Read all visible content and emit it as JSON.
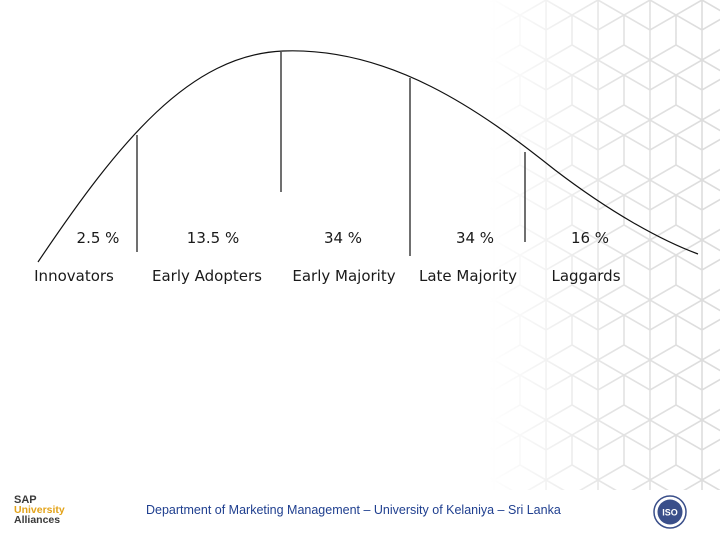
{
  "segments": [
    {
      "percent": "2.5 %",
      "label": "Innovators"
    },
    {
      "percent": "13.5 %",
      "label": "Early Adopters"
    },
    {
      "percent": "34 %",
      "label": "Early  Majority"
    },
    {
      "percent": "34 %",
      "label": "Late Majority"
    },
    {
      "percent": "16 %",
      "label": "Laggards"
    }
  ],
  "footer": {
    "department": "Department of Marketing Management – University of Kelaniya – Sri Lanka"
  },
  "logos": {
    "sap_line1": "SAP",
    "sap_line2": "University",
    "sap_line3": "Alliances",
    "iso_text": "ISO"
  },
  "colors": {
    "curve": "#111111",
    "footer_text": "#1f3f8f",
    "sap_accent": "#e3a31a",
    "pattern": "#dcdcdc",
    "iso_badge": "#3a4f8a"
  }
}
